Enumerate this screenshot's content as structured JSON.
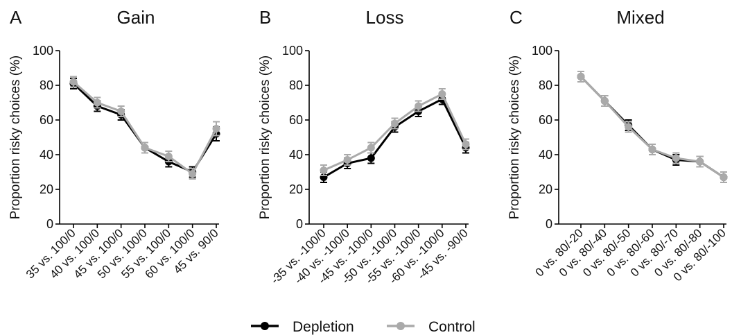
{
  "legend": [
    {
      "name": "Depletion",
      "color": "#000000"
    },
    {
      "name": "Control",
      "color": "#aaaaaa"
    }
  ],
  "chart_data": [
    {
      "type": "line",
      "panel_letter": "A",
      "title": "Gain",
      "ylabel": "Proportion risky choices (%)",
      "ylim": [
        0,
        100
      ],
      "yticks": [
        0,
        20,
        40,
        60,
        80,
        100
      ],
      "categories": [
        "35 vs. 100/0",
        "40 vs. 100/0",
        "45 vs. 100/0",
        "50 vs. 100/0",
        "55 vs. 100/0",
        "60 vs. 100/0",
        "45 vs. 90/0"
      ],
      "series": [
        {
          "name": "Depletion",
          "values": [
            81,
            68,
            63,
            44,
            36,
            30,
            52
          ],
          "errors": [
            3,
            3,
            3,
            3,
            3,
            3,
            4
          ]
        },
        {
          "name": "Control",
          "values": [
            82,
            70,
            65,
            44,
            39,
            29,
            55
          ],
          "errors": [
            3,
            3,
            3,
            3,
            3,
            3,
            4
          ]
        }
      ]
    },
    {
      "type": "line",
      "panel_letter": "B",
      "title": "Loss",
      "ylabel": "Proportion risky choices (%)",
      "ylim": [
        0,
        100
      ],
      "yticks": [
        0,
        20,
        40,
        60,
        80,
        100
      ],
      "categories": [
        "-35 vs. -100/0",
        "-40 vs. -100/0",
        "-45 vs. -100/0",
        "-50 vs. -100/0",
        "-55 vs. -100/0",
        "-60 vs. -100/0",
        "-45 vs. -90/0"
      ],
      "series": [
        {
          "name": "Depletion",
          "values": [
            27,
            35,
            38,
            56,
            65,
            72,
            44
          ],
          "errors": [
            3,
            3,
            3,
            3,
            3,
            3,
            3
          ]
        },
        {
          "name": "Control",
          "values": [
            31,
            37,
            44,
            58,
            68,
            75,
            46
          ],
          "errors": [
            3,
            3,
            3,
            3,
            3,
            3,
            3
          ]
        }
      ]
    },
    {
      "type": "line",
      "panel_letter": "C",
      "title": "Mixed",
      "ylabel": "Proportion risky choices (%)",
      "ylim": [
        0,
        100
      ],
      "yticks": [
        0,
        20,
        40,
        60,
        80,
        100
      ],
      "categories": [
        "0 vs. 80/-20",
        "0 vs. 80/-40",
        "0 vs. 80/-50",
        "0 vs. 80/-60",
        "0 vs. 80/-70",
        "0 vs. 80/-80",
        "0 vs. 80/-100"
      ],
      "series": [
        {
          "name": "Depletion",
          "values": [
            85,
            71,
            57,
            43,
            37,
            36,
            27
          ],
          "errors": [
            3,
            3,
            3,
            3,
            3,
            3,
            3
          ]
        },
        {
          "name": "Control",
          "values": [
            85,
            71,
            56,
            43,
            38,
            36,
            27
          ],
          "errors": [
            3,
            3,
            3,
            3,
            3,
            3,
            3
          ]
        }
      ]
    }
  ]
}
